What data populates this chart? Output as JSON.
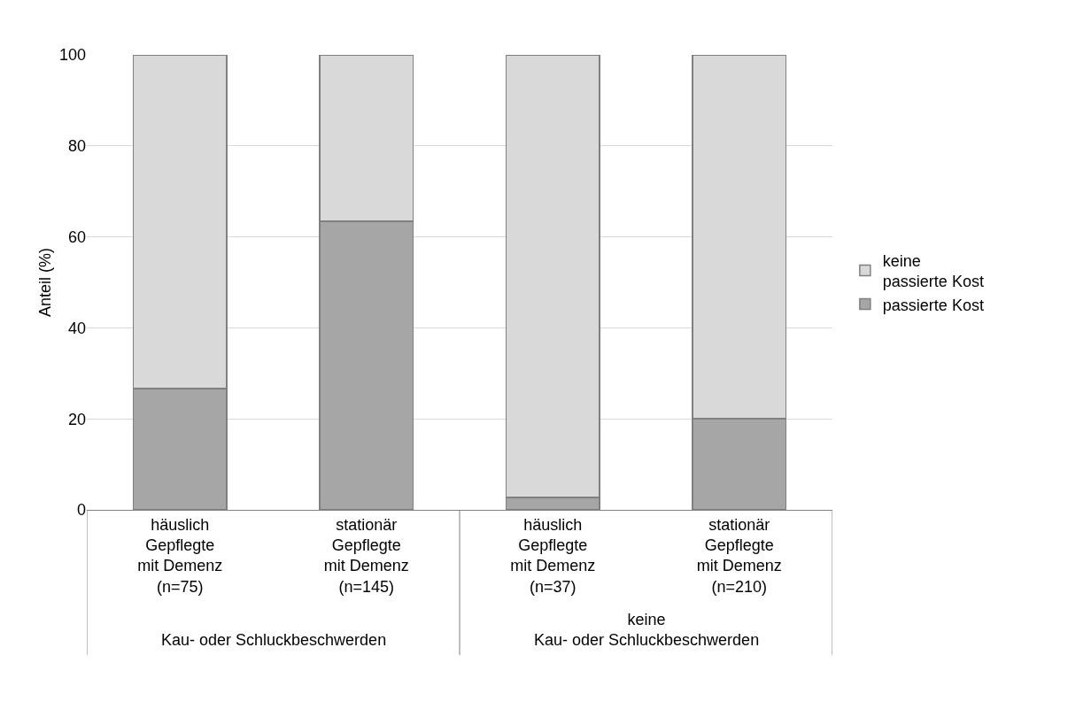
{
  "chart_data": {
    "type": "bar",
    "stacked": true,
    "ylabel": "Anteil (%)",
    "categories": [
      "häuslich\nGepflegte\nmit Demenz\n(n=75)",
      "stationär\nGepflegte\nmit Demenz\n(n=145)",
      "häuslich\nGepflegte\nmit Demenz\n(n=37)",
      "stationär\nGepflegte\nmit Demenz\n(n=210)"
    ],
    "series": [
      {
        "name": "passierte Kost",
        "color": "#a6a6a6",
        "values": [
          26.7,
          63.4,
          2.7,
          20.0
        ]
      },
      {
        "name": "keine\npassierte Kost",
        "color": "#d9d9d9",
        "values": [
          73.3,
          36.6,
          97.3,
          80.0
        ]
      }
    ],
    "annotations": [
      "Kau- oder Schluckbeschwerden",
      "keine\nKau- oder Schluckbeschwerden"
    ],
    "ylim": [
      0,
      100
    ],
    "yticks": [
      0,
      20,
      40,
      60,
      80,
      100
    ],
    "grid": "y",
    "legend": "right"
  }
}
